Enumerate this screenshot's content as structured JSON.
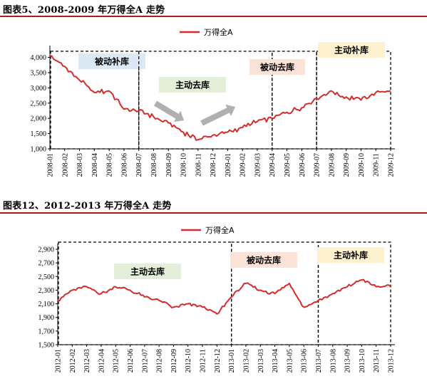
{
  "chart_data": [
    {
      "type": "line",
      "title": "图表5、2008-2009 年万得全A 走势",
      "series": [
        {
          "name": "万得全A",
          "color": "#d42b2b"
        }
      ],
      "categories": [
        "2008-01",
        "2008-02",
        "2008-03",
        "2008-04",
        "2008-05",
        "2008-06",
        "2008-07",
        "2008-08",
        "2008-09",
        "2008-10",
        "2008-11",
        "2008-12",
        "2009-01",
        "2009-02",
        "2009-03",
        "2009-04",
        "2009-05",
        "2009-06",
        "2009-07",
        "2009-08",
        "2009-09",
        "2009-10",
        "2009-11",
        "2009-12"
      ],
      "values": [
        4050,
        3700,
        3250,
        2850,
        2900,
        2300,
        2250,
        2050,
        1850,
        1550,
        1300,
        1450,
        1550,
        1700,
        1900,
        2000,
        2200,
        2350,
        2650,
        2900,
        2700,
        2600,
        2850,
        2900
      ],
      "yticks": [
        "4,000",
        "3,500",
        "3,000",
        "2,500",
        "2,000",
        "1,500",
        "1,000"
      ],
      "ylim": [
        1000,
        4200
      ],
      "regions": [
        {
          "label": "被动补库",
          "from": "2008-01",
          "to": "2008-07",
          "color": "#dce9f5"
        },
        {
          "label": "主动去库",
          "from": "2008-07",
          "to": "2009-04",
          "color": "#e4efd9"
        },
        {
          "label": "被动去库",
          "from": "2009-04",
          "to": "2009-07",
          "color": "#fbe3d8"
        },
        {
          "label": "主动补库",
          "from": "2009-07",
          "to": "2009-12",
          "color": "#fdf1cf"
        }
      ],
      "grid": false,
      "legend": "top-center"
    },
    {
      "type": "line",
      "title": "图表12、2012-2013 年万得全A 走势",
      "series": [
        {
          "name": "万得全A",
          "color": "#d42b2b"
        }
      ],
      "categories": [
        "2012-01",
        "2012-02",
        "2012-03",
        "2012-04",
        "2012-05",
        "2012-06",
        "2012-07",
        "2012-08",
        "2012-09",
        "2012-10",
        "2012-11",
        "2012-12",
        "2013-01",
        "2013-02",
        "2013-03",
        "2013-04",
        "2013-05",
        "2013-06",
        "2013-07",
        "2013-08",
        "2013-09",
        "2013-10",
        "2013-11",
        "2013-12"
      ],
      "values": [
        2150,
        2300,
        2350,
        2250,
        2350,
        2300,
        2200,
        2150,
        2050,
        2100,
        2050,
        1950,
        2200,
        2400,
        2300,
        2250,
        2400,
        2050,
        2150,
        2250,
        2350,
        2450,
        2350,
        2350
      ],
      "yticks": [
        "2,900",
        "2,700",
        "2,500",
        "2,300",
        "2,100",
        "1,900",
        "1,700",
        "1,500"
      ],
      "ylim": [
        1500,
        2900
      ],
      "regions": [
        {
          "label": "主动去库",
          "from": "2012-01",
          "to": "2013-01",
          "color": "#e4efd9"
        },
        {
          "label": "被动去库",
          "from": "2013-01",
          "to": "2013-07",
          "color": "#fbe3d8"
        },
        {
          "label": "主动补库",
          "from": "2013-07",
          "to": "2013-12",
          "color": "#fdf1cf"
        }
      ],
      "grid": false,
      "legend": "top-center"
    }
  ]
}
